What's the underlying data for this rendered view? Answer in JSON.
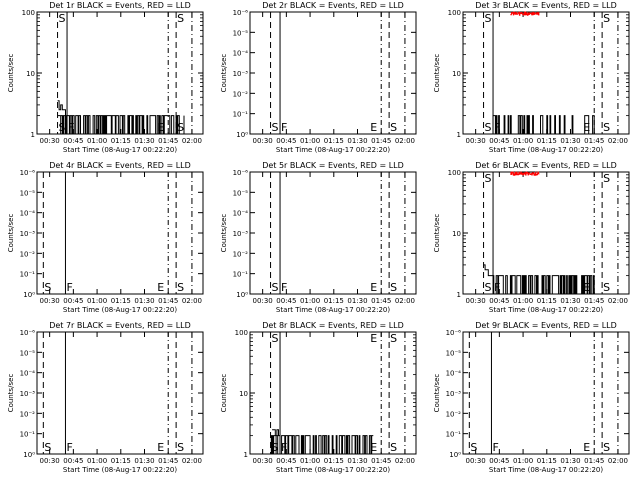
{
  "figure": {
    "layout": "3x3 grid",
    "colors": {
      "events": "#000000",
      "lld": "#ff0000",
      "background": "#ffffff"
    }
  },
  "chart_data": [
    {
      "type": "line",
      "title": "Det 1r BLACK = Events, RED = LLD",
      "xlabel": "Start Time (08-Aug-17 00:22:20)",
      "ylabel": "Counts/sec",
      "ylog": true,
      "yticks": [
        "1",
        "10",
        "100"
      ],
      "ylim": [
        1,
        100
      ],
      "xticks": [
        "00:30",
        "00:45",
        "01:00",
        "01:15",
        "01:30",
        "01:45",
        "02:00"
      ],
      "xlim_min": [
        0,
        105
      ],
      "markers": [
        {
          "label": "S",
          "t": 13
        },
        {
          "label": "F",
          "t": 19
        },
        {
          "label": "E",
          "t": 83
        },
        {
          "label": "S",
          "t": 88
        }
      ],
      "series": [
        {
          "color": "#000000",
          "style": "jumpy",
          "t_range": [
            13,
            88
          ],
          "levels": [
            1,
            2
          ],
          "seed": 11,
          "points": [
            [
              13,
              3.5
            ],
            [
              14,
              2.5
            ],
            [
              15,
              3
            ],
            [
              16,
              2.5
            ],
            [
              18,
              2
            ]
          ]
        },
        {
          "color": "#000000",
          "style": "sparse",
          "t_range": [
            88,
            93
          ],
          "levels": [
            1,
            2
          ],
          "seed": 12,
          "points": []
        }
      ]
    },
    {
      "type": "line",
      "title": "Det 2r BLACK = Events, RED = LLD",
      "xlabel": "Start Time (08-Aug-17 00:22:20)",
      "ylabel": "Counts/sec",
      "ylog": true,
      "yticks": [
        "10⁰",
        "10⁻¹",
        "10⁻²",
        "10⁻³",
        "10⁻⁴",
        "10⁻⁵",
        "10⁻⁶"
      ],
      "ylim": [
        1,
        100
      ],
      "xticks": [
        "00:30",
        "00:45",
        "01:00",
        "01:15",
        "01:30",
        "01:45",
        "02:00"
      ],
      "xlim_min": [
        0,
        105
      ],
      "markers": [
        {
          "label": "S",
          "t": 13
        },
        {
          "label": "F",
          "t": 19
        },
        {
          "label": "E",
          "t": 83
        },
        {
          "label": "S",
          "t": 88
        }
      ],
      "series": []
    },
    {
      "type": "line",
      "title": "Det 3r BLACK = Events, RED = LLD",
      "xlabel": "Start Time (08-Aug-17 00:22:20)",
      "ylabel": "Counts/sec",
      "ylog": true,
      "yticks": [
        "1",
        "10",
        "100"
      ],
      "ylim": [
        1,
        100
      ],
      "xticks": [
        "00:30",
        "00:45",
        "01:00",
        "01:15",
        "01:30",
        "01:45",
        "02:00"
      ],
      "xlim_min": [
        0,
        105
      ],
      "markers": [
        {
          "label": "S",
          "t": 13
        },
        {
          "label": "F",
          "t": 19
        },
        {
          "label": "E",
          "t": 83
        },
        {
          "label": "S",
          "t": 88
        }
      ],
      "series": [
        {
          "color": "#000000",
          "style": "sparse",
          "t_range": [
            19,
            83
          ],
          "levels": [
            1,
            2
          ],
          "seed": 31,
          "points": []
        },
        {
          "color": "#ff0000",
          "style": "band",
          "t_range": [
            30,
            48
          ],
          "levels": [
            88,
            100
          ],
          "seed": 32,
          "points": []
        }
      ]
    },
    {
      "type": "line",
      "title": "Det 4r BLACK = Events, RED = LLD",
      "xlabel": "Start Time (08-Aug-17 00:22:20)",
      "ylabel": "Counts/sec",
      "ylog": true,
      "yticks": [
        "10⁰",
        "10⁻¹",
        "10⁻²",
        "10⁻³",
        "10⁻⁴",
        "10⁻⁵",
        "10⁻⁶"
      ],
      "ylim": [
        1,
        100
      ],
      "xticks": [
        "00:30",
        "00:45",
        "01:00",
        "01:15",
        "01:30",
        "01:45",
        "02:00"
      ],
      "xlim_min": [
        0,
        105
      ],
      "markers": [
        {
          "label": "S",
          "t": 4
        },
        {
          "label": "F",
          "t": 18
        },
        {
          "label": "E",
          "t": 83
        },
        {
          "label": "S",
          "t": 88
        }
      ],
      "series": []
    },
    {
      "type": "line",
      "title": "Det 5r BLACK = Events, RED = LLD",
      "xlabel": "Start Time (08-Aug-17 00:22:20)",
      "ylabel": "Counts/sec",
      "ylog": true,
      "yticks": [
        "10⁰",
        "10⁻¹",
        "10⁻²",
        "10⁻³",
        "10⁻⁴",
        "10⁻⁵",
        "10⁻⁶"
      ],
      "ylim": [
        1,
        100
      ],
      "xticks": [
        "00:30",
        "00:45",
        "01:00",
        "01:15",
        "01:30",
        "01:45",
        "02:00"
      ],
      "xlim_min": [
        0,
        105
      ],
      "markers": [
        {
          "label": "S",
          "t": 13
        },
        {
          "label": "F",
          "t": 19
        },
        {
          "label": "E",
          "t": 83
        },
        {
          "label": "S",
          "t": 88
        }
      ],
      "series": []
    },
    {
      "type": "line",
      "title": "Det 6r BLACK = Events, RED = LLD",
      "xlabel": "Start Time (08-Aug-17 00:22:20)",
      "ylabel": "Counts/sec",
      "ylog": true,
      "yticks": [
        "1",
        "10",
        "100"
      ],
      "ylim": [
        1,
        100
      ],
      "xticks": [
        "00:30",
        "00:45",
        "01:00",
        "01:15",
        "01:30",
        "01:45",
        "02:00"
      ],
      "xlim_min": [
        0,
        105
      ],
      "markers": [
        {
          "label": "S",
          "t": 13
        },
        {
          "label": "F",
          "t": 19
        },
        {
          "label": "E",
          "t": 83
        },
        {
          "label": "S",
          "t": 88
        }
      ],
      "series": [
        {
          "color": "#000000",
          "style": "jumpy",
          "t_range": [
            19,
            83
          ],
          "levels": [
            1,
            2
          ],
          "seed": 61,
          "points": [
            [
              13,
              3
            ],
            [
              14,
              2.5
            ],
            [
              15,
              2.5
            ],
            [
              16,
              2
            ],
            [
              18,
              2
            ]
          ]
        },
        {
          "color": "#ff0000",
          "style": "band",
          "t_range": [
            30,
            48
          ],
          "levels": [
            88,
            100
          ],
          "seed": 62,
          "points": []
        }
      ]
    },
    {
      "type": "line",
      "title": "Det 7r BLACK = Events, RED = LLD",
      "xlabel": "Start Time (08-Aug-17 00:22:20)",
      "ylabel": "Counts/sec",
      "ylog": true,
      "yticks": [
        "10⁰",
        "10⁻¹",
        "10⁻²",
        "10⁻³",
        "10⁻⁴",
        "10⁻⁵",
        "10⁻⁶"
      ],
      "ylim": [
        1,
        100
      ],
      "xticks": [
        "00:30",
        "00:45",
        "01:00",
        "01:15",
        "01:30",
        "01:45",
        "02:00"
      ],
      "xlim_min": [
        0,
        105
      ],
      "markers": [
        {
          "label": "S",
          "t": 4
        },
        {
          "label": "F",
          "t": 18
        },
        {
          "label": "E",
          "t": 83
        },
        {
          "label": "S",
          "t": 88
        }
      ],
      "series": []
    },
    {
      "type": "line",
      "title": "Det 8r BLACK = Events, RED = LLD",
      "xlabel": "Start Time (08-Aug-17 00:22:20)",
      "ylabel": "Counts/sec",
      "ylog": true,
      "yticks": [
        "1",
        "10",
        "100"
      ],
      "ylim": [
        1,
        100
      ],
      "xticks": [
        "00:30",
        "00:45",
        "01:00",
        "01:15",
        "01:30",
        "01:45",
        "02:00"
      ],
      "xlim_min": [
        0,
        105
      ],
      "markers": [
        {
          "label": "S",
          "t": 13
        },
        {
          "label": "F",
          "t": 19
        },
        {
          "label": "E",
          "t": 83
        },
        {
          "label": "S",
          "t": 88
        }
      ],
      "series": [
        {
          "color": "#000000",
          "style": "jumpy",
          "t_range": [
            13,
            78
          ],
          "levels": [
            1,
            2
          ],
          "seed": 81,
          "points": [
            [
              14,
              2.5
            ],
            [
              15,
              2.5
            ],
            [
              16,
              2
            ],
            [
              17,
              2.5
            ],
            [
              18,
              2
            ]
          ]
        }
      ]
    },
    {
      "type": "line",
      "title": "Det 9r BLACK = Events, RED = LLD",
      "xlabel": "Start Time (08-Aug-17 00:22:20)",
      "ylabel": "Counts/sec",
      "ylog": true,
      "yticks": [
        "10⁰",
        "10⁻¹",
        "10⁻²",
        "10⁻³",
        "10⁻⁴",
        "10⁻⁵",
        "10⁻⁶"
      ],
      "ylim": [
        1,
        100
      ],
      "xticks": [
        "00:30",
        "00:45",
        "01:00",
        "01:15",
        "01:30",
        "01:45",
        "02:00"
      ],
      "xlim_min": [
        0,
        105
      ],
      "markers": [
        {
          "label": "S",
          "t": 4
        },
        {
          "label": "F",
          "t": 18
        },
        {
          "label": "E",
          "t": 83
        },
        {
          "label": "S",
          "t": 88
        }
      ],
      "series": []
    }
  ]
}
